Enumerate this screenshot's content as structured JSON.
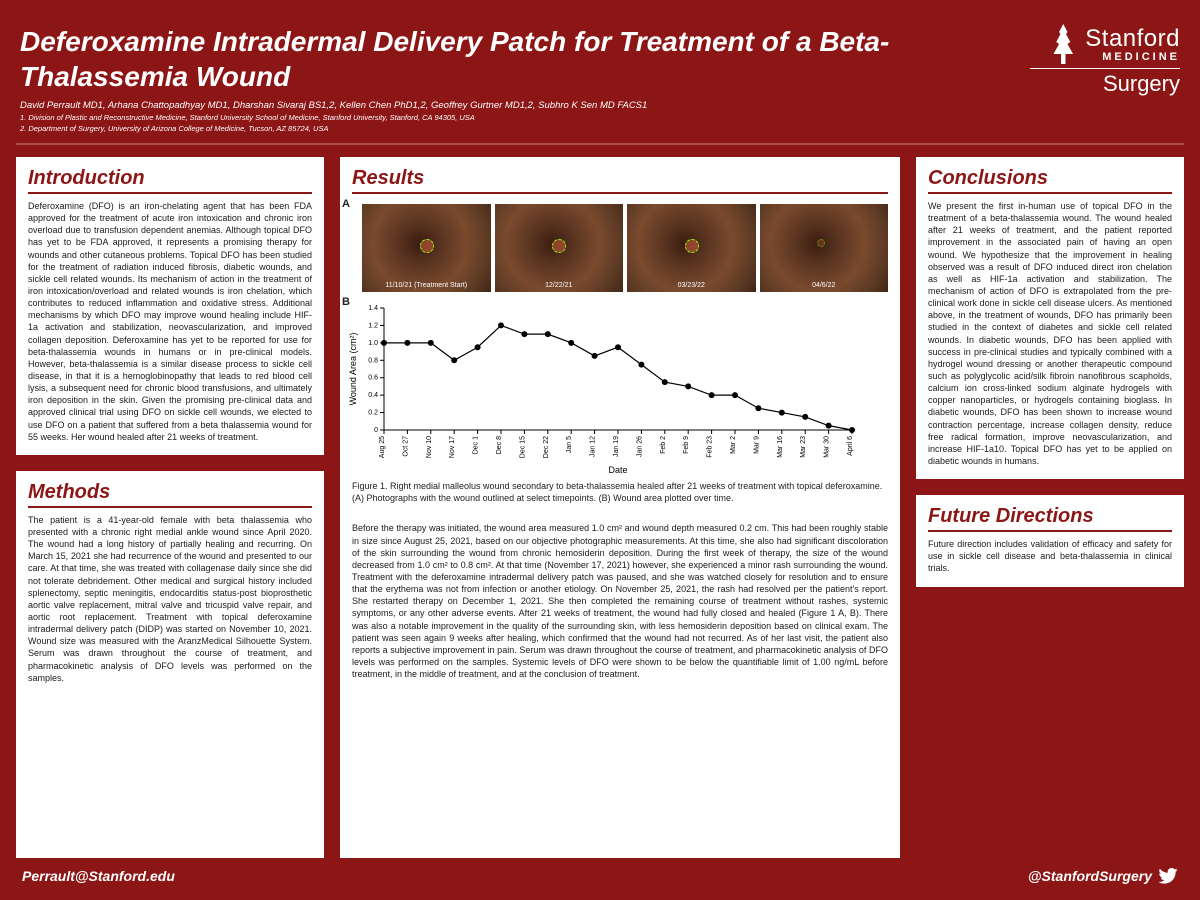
{
  "header": {
    "title": "Deferoxamine Intradermal Delivery Patch for Treatment of a Beta-Thalassemia Wound",
    "authors": "David Perrault MD1, Arhana Chattopadhyay MD1, Dharshan Sivaraj BS1,2, Kellen Chen PhD1,2, Geoffrey Gurtner MD1,2, Subhro K Sen MD FACS1",
    "affil1": "1. Division of Plastic and Reconstructive Medicine, Stanford University School of Medicine, Stanford University, Stanford, CA 94305, USA",
    "affil2": "2. Department of Surgery, University of Arizona College of Medicine, Tucson, AZ 85724, USA",
    "logo_name": "Stanford",
    "logo_med": "MEDICINE",
    "logo_dept": "Surgery"
  },
  "introduction": {
    "heading": "Introduction",
    "body": "Deferoxamine (DFO) is an iron-chelating agent that has been FDA approved for the treatment of acute iron intoxication and chronic iron overload due to transfusion dependent anemias. Although topical DFO has yet to be FDA approved, it represents a promising therapy for wounds and other cutaneous problems. Topical DFO has been studied for the treatment of radiation induced fibrosis, diabetic wounds, and sickle cell related wounds. Its mechanism of action in the treatment of iron intoxication/overload and related wounds is iron chelation, which contributes to reduced inflammation and oxidative stress. Additional mechanisms by which DFO may improve wound healing include HIF-1a activation and stabilization, neovascularization, and improved collagen deposition. Deferoxamine has yet to be reported for use for beta-thalassemia wounds in humans or in pre-clinical models. However, beta-thalassemia is a similar disease process to sickle cell disease, in that it is a hemoglobinopathy that leads to red blood cell lysis, a subsequent need for chronic blood transfusions, and ultimately iron deposition in the skin. Given the promising pre-clinical data and approved clinical trial using DFO on sickle cell wounds, we elected to use DFO on a patient that suffered from a beta thalassemia wound for 55 weeks. Her wound healed after 21 weeks of treatment."
  },
  "methods": {
    "heading": "Methods",
    "body": "The patient is a 41-year-old female with beta thalassemia who presented with a chronic right medial ankle wound since April 2020. The wound had a long history of partially healing and recurring. On March 15, 2021 she had recurrence of the wound and presented to our care. At that time, she was treated with collagenase daily since she did not tolerate debridement. Other medical and surgical history included splenectomy, septic meningitis, endocarditis status-post bioprosthetic aortic valve replacement, mitral valve and tricuspid valve repair, and aortic root replacement. Treatment with topical deferoxamine intradermal delivery patch (DIDP) was started on November 10, 2021. Wound size was measured with the AranzMedical Silhouette System. Serum was drawn throughout the course of treatment, and pharmacokinetic analysis of DFO levels was performed on the samples."
  },
  "results": {
    "heading": "Results",
    "photo_labels": [
      "11/10/21 (Treatment Start)",
      "12/22/21",
      "03/23/22",
      "04/6/22"
    ],
    "chart": {
      "type": "line",
      "ylabel": "Wound Area (cm²)",
      "xlabel": "Date",
      "ylim": [
        0,
        1.4
      ],
      "ytick_step": 0.2,
      "yticks": [
        "0",
        "0.2",
        "0.4",
        "0.6",
        "0.8",
        "1.0",
        "1.2",
        "1.4"
      ],
      "xticks": [
        "Aug 25",
        "Oct 27",
        "Nov 10",
        "Nov 17",
        "Dec 1",
        "Dec 8",
        "Dec 15",
        "Dec 22",
        "Jan 5",
        "Jan 12",
        "Jan 19",
        "Jan 26",
        "Feb 2",
        "Feb 9",
        "Feb 23",
        "Mar 2",
        "Mar 9",
        "Mar 16",
        "Mar 23",
        "Mar 30",
        "April 6"
      ],
      "y_values": [
        1.0,
        1.0,
        1.0,
        0.8,
        0.95,
        1.2,
        1.1,
        1.1,
        1.0,
        0.85,
        0.95,
        0.75,
        0.55,
        0.5,
        0.4,
        0.4,
        0.25,
        0.2,
        0.15,
        0.05,
        0
      ],
      "line_color": "#000000",
      "marker": "circle",
      "marker_size": 3,
      "background_color": "#ffffff"
    },
    "caption": "Figure 1. Right medial malleolus wound secondary to beta-thalassemia healed after 21 weeks of treatment with topical deferoxamine. (A) Photographs with the wound outlined at select timepoints. (B) Wound area plotted over time.",
    "body": "Before the therapy was initiated, the wound area measured 1.0 cm² and wound depth measured 0.2 cm. This had been roughly stable in size since August 25, 2021, based on our objective photographic measurements. At this time, she also had significant discoloration of the skin surrounding the wound from chronic hemosiderin deposition. During the first week of therapy, the size of the wound decreased from 1.0 cm² to 0.8 cm². At that time (November 17, 2021) however, she experienced a minor rash surrounding the wound. Treatment with the deferoxamine intradermal delivery patch was paused, and she was watched closely for resolution and to ensure that the erythema was not from infection or another etiology. On November 25, 2021, the rash had resolved per the patient's report. She restarted therapy on December 1, 2021. She then completed the remaining course of treatment without rashes, systemic symptoms, or any other adverse events. After 21 weeks of treatment, the wound had fully closed and healed (Figure 1 A, B). There was also a notable improvement in the quality of the surrounding skin, with less hemosiderin deposition based on clinical exam. The patient was seen again 9 weeks after healing, which confirmed that the wound had not recurred. As of her last visit, the patient also reports a subjective improvement in pain. Serum was drawn throughout the course of treatment, and pharmacokinetic analysis of DFO levels was performed on the samples. Systemic levels of DFO were shown to be below the quantifiable limit of 1.00 ng/mL before treatment, in the middle of treatment, and at the conclusion of treatment."
  },
  "conclusions": {
    "heading": "Conclusions",
    "body": "We present the first in-human use of topical DFO in the treatment of a beta-thalassemia wound. The wound healed after 21 weeks of treatment, and the patient reported improvement in the associated pain of having an open wound. We hypothesize that the improvement in healing observed was a result of DFO induced direct iron chelation as well as HIF-1a activation and stabilization. The mechanism of action of DFO is extrapolated from the pre-clinical work done in sickle cell disease ulcers. As mentioned above, in the treatment of wounds, DFO has primarily been studied in the context of diabetes and sickle cell related wounds. In diabetic wounds, DFO has been applied with success in pre-clinical studies and typically combined with a hydrogel wound dressing or another therapeutic compound such as polyglycolic acid/silk fibroin nanofibrous scapholds, calcium ion cross-linked sodium alginate hydrogels with copper nanoparticles, or hydrogels containing bioglass. In diabetic wounds, DFO has been shown to increase wound contraction percentage, increase collagen density, reduce free radical formation, improve neovascularization, and increase HIF-1a10. Topical DFO has yet to be applied on diabetic wounds in humans."
  },
  "future": {
    "heading": "Future Directions",
    "body": "Future direction includes validation of efficacy and safety for use in sickle cell disease and beta-thalassemia in clinical trials."
  },
  "footer": {
    "email": "Perrault@Stanford.edu",
    "handle": "@StanfordSurgery"
  },
  "colors": {
    "brand": "#8c1515",
    "panel_bg": "#ffffff",
    "text": "#1a1a1a"
  }
}
